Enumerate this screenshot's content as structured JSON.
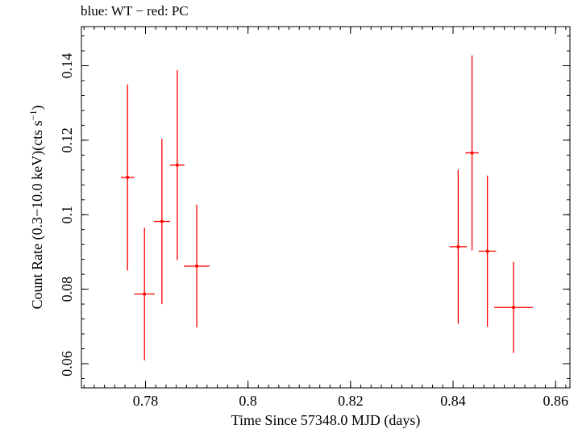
{
  "chart_data": {
    "type": "scatter",
    "title": "blue: WT − red: PC",
    "xlabel": "Time Since 57348.0 MJD (days)",
    "ylabel_main": "Count Rate (0.3−10.0 keV)(cts s",
    "ylabel_sup": "−1",
    "ylabel_end": ")",
    "xlim": [
      0.7675,
      0.8628
    ],
    "ylim": [
      0.0535,
      0.1505
    ],
    "xticks": [
      0.78,
      0.8,
      0.82,
      0.84,
      0.86
    ],
    "xtick_labels": [
      "0.78",
      "0.8",
      "0.82",
      "0.84",
      "0.86"
    ],
    "yticks": [
      0.06,
      0.08,
      0.1,
      0.12,
      0.14
    ],
    "ytick_labels": [
      "0.06",
      "0.08",
      "0.1",
      "0.12",
      "0.14"
    ],
    "xminor": 0.002,
    "yminor": 0.004,
    "grid": false,
    "series": [
      {
        "color": "#ff0000",
        "points": [
          {
            "x": 0.7765,
            "xerr": 0.0013,
            "y": 0.11,
            "yerr_lo": 0.025,
            "yerr_hi": 0.025
          },
          {
            "x": 0.7798,
            "xerr": 0.002,
            "y": 0.0787,
            "yerr_lo": 0.0178,
            "yerr_hi": 0.0178
          },
          {
            "x": 0.7832,
            "xerr": 0.0016,
            "y": 0.0982,
            "yerr_lo": 0.0222,
            "yerr_hi": 0.0222
          },
          {
            "x": 0.7862,
            "xerr": 0.0014,
            "y": 0.1133,
            "yerr_lo": 0.0255,
            "yerr_hi": 0.0255
          },
          {
            "x": 0.79,
            "xerr": 0.0025,
            "y": 0.0862,
            "yerr_lo": 0.0165,
            "yerr_hi": 0.0165
          },
          {
            "x": 0.841,
            "xerr": 0.0017,
            "y": 0.0914,
            "yerr_lo": 0.0207,
            "yerr_hi": 0.0207
          },
          {
            "x": 0.8437,
            "xerr": 0.0013,
            "y": 0.1166,
            "yerr_lo": 0.0262,
            "yerr_hi": 0.0262
          },
          {
            "x": 0.8467,
            "xerr": 0.0017,
            "y": 0.0902,
            "yerr_lo": 0.0203,
            "yerr_hi": 0.0203
          },
          {
            "x": 0.8518,
            "xerr": 0.0038,
            "y": 0.0751,
            "yerr_lo": 0.0122,
            "yerr_hi": 0.0122
          }
        ]
      }
    ]
  }
}
